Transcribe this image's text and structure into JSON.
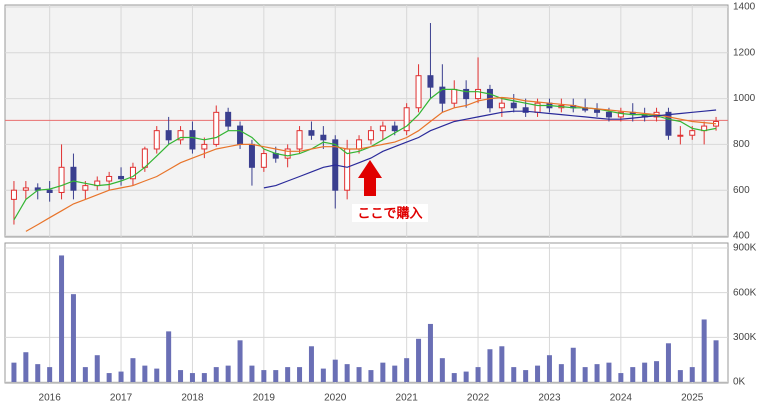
{
  "chart_data": {
    "type": "candlestick",
    "categories": [
      null,
      null,
      null,
      "2016",
      null,
      null,
      null,
      null,
      null,
      "2017",
      null,
      null,
      null,
      null,
      null,
      "2018",
      null,
      null,
      null,
      null,
      null,
      "2019",
      null,
      null,
      null,
      null,
      null,
      "2020",
      null,
      null,
      null,
      null,
      null,
      "2021",
      null,
      null,
      null,
      null,
      null,
      "2022",
      null,
      null,
      null,
      null,
      null,
      "2023",
      null,
      null,
      null,
      null,
      null,
      "2024",
      null,
      null,
      null,
      null,
      null,
      "2025",
      null,
      null
    ],
    "open": [
      560,
      600,
      610,
      600,
      590,
      700,
      600,
      620,
      640,
      660,
      650,
      700,
      780,
      860,
      820,
      860,
      780,
      800,
      940,
      880,
      800,
      700,
      760,
      740,
      780,
      860,
      840,
      820,
      600,
      780,
      820,
      860,
      880,
      860,
      960,
      1100,
      1050,
      980,
      1040,
      1000,
      1040,
      960,
      980,
      960,
      940,
      980,
      960,
      970,
      960,
      950,
      940,
      920,
      940,
      930,
      920,
      940,
      840,
      840,
      860,
      880
    ],
    "high": [
      640,
      640,
      630,
      640,
      800,
      760,
      640,
      660,
      680,
      700,
      720,
      790,
      880,
      920,
      880,
      900,
      830,
      970,
      960,
      900,
      820,
      780,
      790,
      800,
      880,
      900,
      880,
      840,
      820,
      840,
      880,
      900,
      900,
      980,
      1150,
      1330,
      1150,
      1080,
      1080,
      1180,
      1060,
      1000,
      1020,
      1000,
      1000,
      1000,
      1000,
      1000,
      1000,
      980,
      960,
      960,
      980,
      960,
      960,
      960,
      880,
      880,
      900,
      920
    ],
    "low": [
      450,
      560,
      560,
      550,
      560,
      560,
      560,
      600,
      600,
      620,
      620,
      680,
      760,
      800,
      800,
      760,
      740,
      790,
      860,
      780,
      620,
      680,
      720,
      700,
      760,
      820,
      780,
      520,
      560,
      760,
      800,
      820,
      840,
      840,
      940,
      1000,
      940,
      960,
      960,
      980,
      940,
      920,
      940,
      920,
      920,
      940,
      940,
      940,
      940,
      920,
      900,
      900,
      900,
      900,
      900,
      820,
      800,
      820,
      800,
      860
    ],
    "close": [
      600,
      610,
      600,
      590,
      700,
      600,
      620,
      640,
      660,
      650,
      700,
      780,
      860,
      820,
      860,
      780,
      800,
      940,
      880,
      800,
      700,
      760,
      740,
      780,
      860,
      840,
      820,
      600,
      780,
      820,
      860,
      880,
      860,
      960,
      1100,
      1050,
      980,
      1040,
      1000,
      1040,
      960,
      980,
      960,
      940,
      980,
      960,
      970,
      960,
      950,
      940,
      920,
      940,
      930,
      920,
      940,
      840,
      840,
      860,
      880,
      900
    ],
    "up_color": "#e03030",
    "down_color": "#3a3f8f",
    "ylim": [
      400,
      1400
    ],
    "yticks": [
      400,
      600,
      800,
      1000,
      1200,
      1400
    ],
    "grid": true,
    "moving_averages": [
      {
        "color": "#33b533",
        "values": [
          470,
          560,
          600,
          605,
          620,
          640,
          630,
          620,
          625,
          640,
          660,
          700,
          750,
          800,
          830,
          830,
          820,
          830,
          860,
          860,
          830,
          780,
          760,
          750,
          760,
          780,
          810,
          800,
          760,
          770,
          790,
          820,
          850,
          880,
          930,
          1000,
          1040,
          1040,
          1030,
          1030,
          1020,
          1000,
          990,
          980,
          970,
          970,
          965,
          960,
          960,
          955,
          945,
          935,
          930,
          930,
          925,
          910,
          900,
          870,
          860,
          870
        ]
      },
      {
        "color": "#e8742a",
        "values": [
          null,
          420,
          450,
          480,
          510,
          540,
          560,
          580,
          600,
          610,
          620,
          640,
          660,
          690,
          720,
          740,
          760,
          780,
          790,
          800,
          800,
          790,
          780,
          770,
          770,
          780,
          790,
          790,
          780,
          780,
          790,
          800,
          810,
          830,
          860,
          900,
          940,
          960,
          970,
          990,
          1000,
          1005,
          1000,
          990,
          985,
          980,
          975,
          970,
          960,
          955,
          950,
          945,
          940,
          935,
          930,
          920,
          910,
          900,
          895,
          890
        ]
      },
      {
        "color": "#2a2a9a",
        "values": [
          null,
          null,
          null,
          null,
          null,
          null,
          null,
          null,
          null,
          null,
          null,
          null,
          null,
          null,
          null,
          null,
          null,
          null,
          null,
          null,
          null,
          610,
          620,
          640,
          660,
          680,
          700,
          710,
          700,
          720,
          740,
          770,
          790,
          810,
          830,
          860,
          880,
          900,
          910,
          920,
          930,
          940,
          945,
          945,
          940,
          935,
          930,
          925,
          920,
          915,
          910,
          910,
          915,
          920,
          925,
          930,
          935,
          940,
          945,
          950
        ]
      }
    ],
    "reference_line": {
      "value": 905,
      "color": "#e87070"
    },
    "annotation": {
      "text": "ここで購入",
      "color": "#e00000"
    },
    "volume": {
      "color": "#6a6fb5",
      "values": [
        130000,
        200000,
        120000,
        100000,
        850000,
        590000,
        100000,
        180000,
        60000,
        70000,
        160000,
        110000,
        90000,
        340000,
        80000,
        60000,
        60000,
        100000,
        110000,
        280000,
        110000,
        80000,
        80000,
        100000,
        100000,
        240000,
        90000,
        150000,
        120000,
        100000,
        80000,
        130000,
        110000,
        160000,
        290000,
        390000,
        160000,
        60000,
        70000,
        100000,
        220000,
        240000,
        100000,
        80000,
        110000,
        180000,
        120000,
        230000,
        100000,
        120000,
        130000,
        60000,
        100000,
        130000,
        140000,
        260000,
        80000,
        100000,
        420000,
        280000
      ],
      "ylim": [
        0,
        900000
      ],
      "yticks": [
        {
          "value": 0,
          "label": "0K"
        },
        {
          "value": 300000,
          "label": "300K"
        },
        {
          "value": 600000,
          "label": "600K"
        },
        {
          "value": 900000,
          "label": "900K"
        }
      ]
    }
  }
}
